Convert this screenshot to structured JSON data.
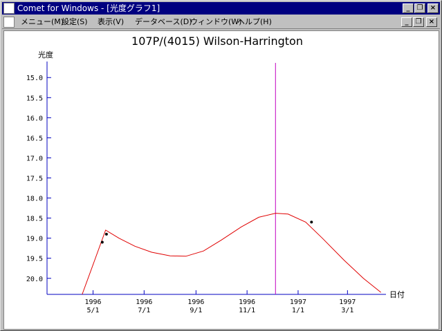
{
  "window": {
    "title": "Comet for Windows - [光度グラフ1]",
    "controls": {
      "minimize": "_",
      "restore": "❐",
      "close": "×"
    }
  },
  "menu": [
    {
      "label": "メニュー(M)"
    },
    {
      "label": "設定(S)"
    },
    {
      "label": "表示(V)"
    },
    {
      "label": "データベース(D)"
    },
    {
      "label": "ウィンドウ(W)"
    },
    {
      "label": "ヘルプ(H)"
    }
  ],
  "colors": {
    "titlebar": "#000080",
    "axis": "#0000c0",
    "curve": "#e00000",
    "marker": "#c000c0",
    "points": "#000000"
  },
  "chart_data": {
    "type": "line",
    "title": "107P/(4015) Wilson-Harrington",
    "ylabel": "光度",
    "xlabel": "日付",
    "y_inverted": true,
    "ylim": [
      20.4,
      14.6
    ],
    "y_ticks": [
      "15.0",
      "15.5",
      "16.0",
      "16.5",
      "17.0",
      "17.5",
      "18.0",
      "18.5",
      "19.0",
      "19.5",
      "20.0"
    ],
    "x_ticks": [
      {
        "year": "1996",
        "date": "5/1"
      },
      {
        "year": "1996",
        "date": "7/1"
      },
      {
        "year": "1996",
        "date": "9/1"
      },
      {
        "year": "1996",
        "date": "11/1"
      },
      {
        "year": "1997",
        "date": "1/1"
      },
      {
        "year": "1997",
        "date": "3/1"
      }
    ],
    "xlim": [
      "1996-03-07",
      "1997-04-16"
    ],
    "marker_date": "1996-12-05",
    "curve": [
      {
        "x": "1996-04-18",
        "y": 20.4
      },
      {
        "x": "1996-05-02",
        "y": 19.6
      },
      {
        "x": "1996-05-16",
        "y": 18.8
      },
      {
        "x": "1996-06-01",
        "y": 19.0
      },
      {
        "x": "1996-06-20",
        "y": 19.2
      },
      {
        "x": "1996-07-10",
        "y": 19.35
      },
      {
        "x": "1996-08-01",
        "y": 19.44
      },
      {
        "x": "1996-08-20",
        "y": 19.45
      },
      {
        "x": "1996-09-10",
        "y": 19.32
      },
      {
        "x": "1996-10-01",
        "y": 19.05
      },
      {
        "x": "1996-10-25",
        "y": 18.72
      },
      {
        "x": "1996-11-15",
        "y": 18.48
      },
      {
        "x": "1996-12-05",
        "y": 18.38
      },
      {
        "x": "1996-12-20",
        "y": 18.4
      },
      {
        "x": "1997-01-10",
        "y": 18.6
      },
      {
        "x": "1997-01-30",
        "y": 19.0
      },
      {
        "x": "1997-02-25",
        "y": 19.55
      },
      {
        "x": "1997-03-20",
        "y": 20.0
      },
      {
        "x": "1997-04-10",
        "y": 20.35
      }
    ],
    "observations": [
      {
        "x": "1996-05-12",
        "y": 19.1
      },
      {
        "x": "1996-05-17",
        "y": 18.9
      },
      {
        "x": "1997-01-17",
        "y": 18.6
      }
    ]
  }
}
